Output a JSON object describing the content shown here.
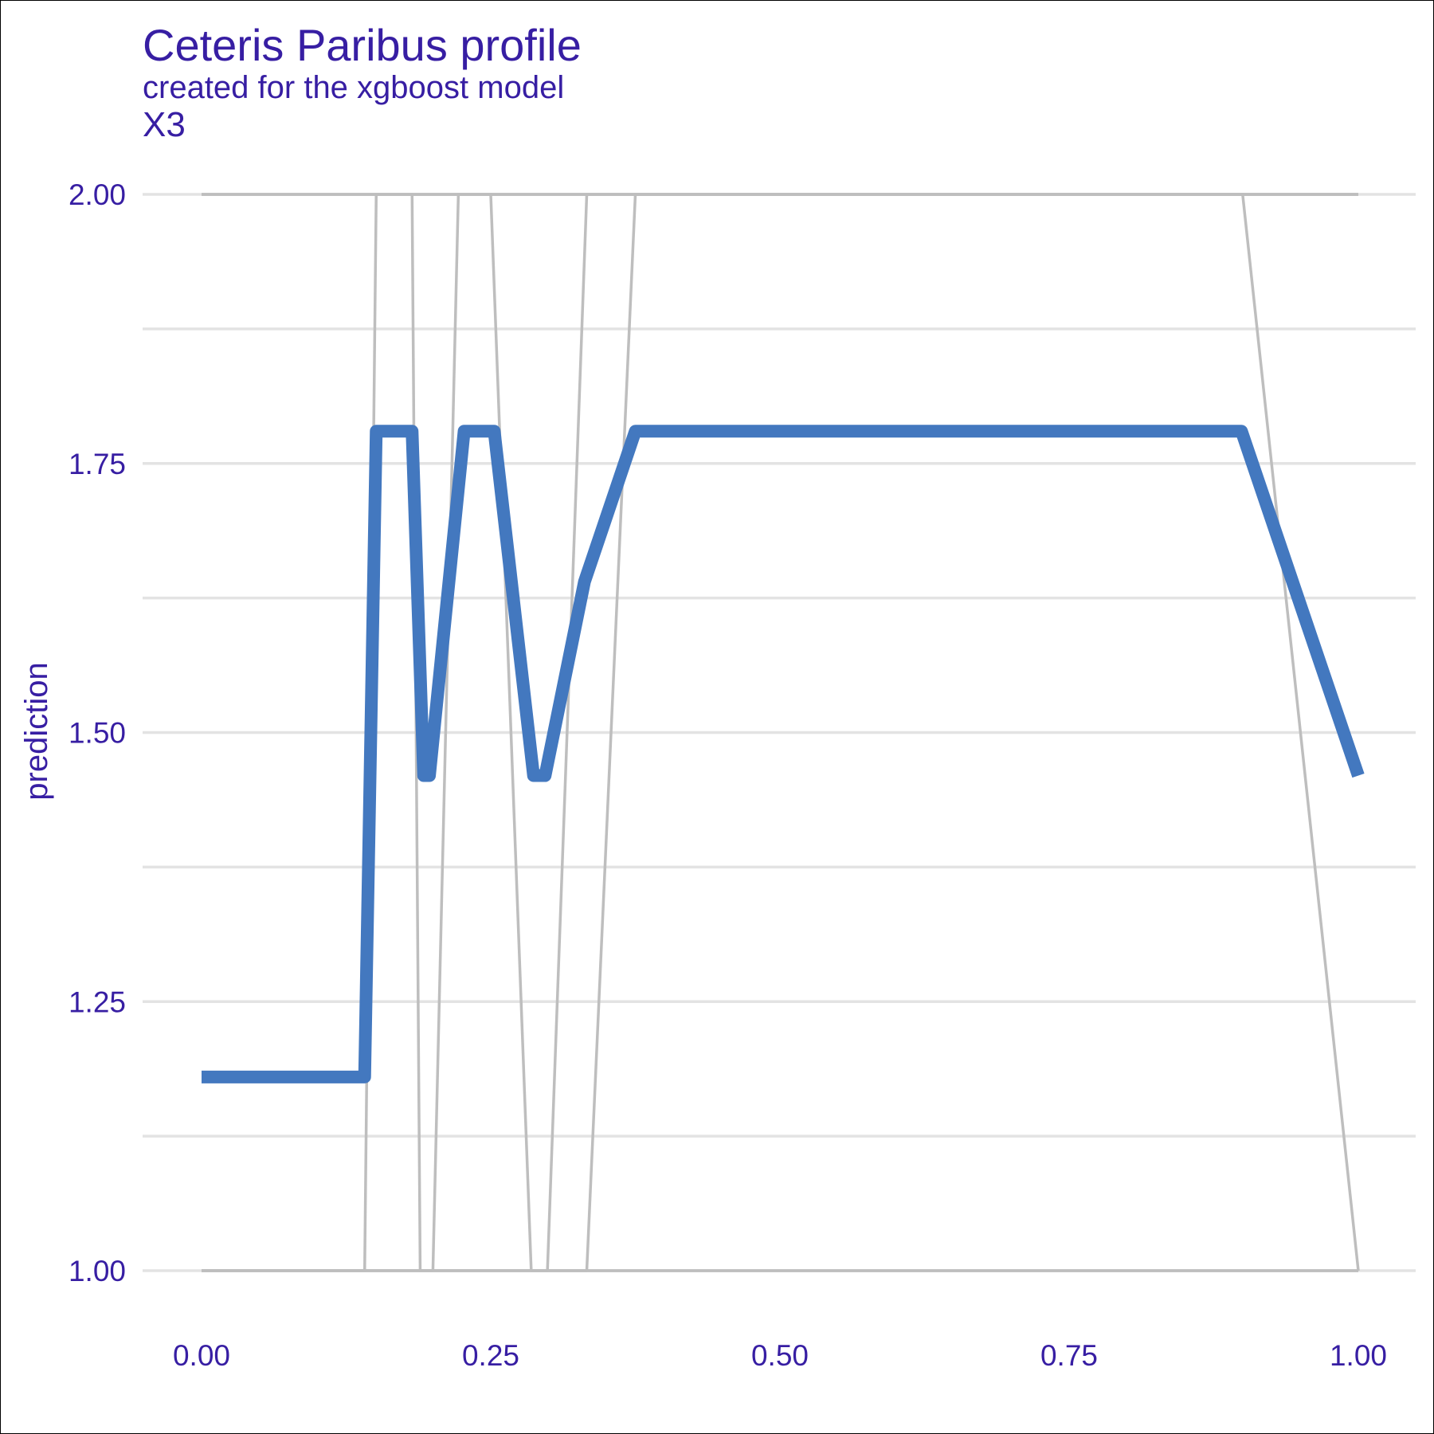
{
  "chart_data": {
    "type": "line",
    "title": "Ceteris Paribus profile",
    "subtitle": "created for the xgboost model",
    "facet_label": "X3",
    "xlabel": "",
    "ylabel": "prediction",
    "xlim": [
      0,
      1
    ],
    "ylim": [
      1,
      2
    ],
    "x_ticks": [
      0,
      0.25,
      0.5,
      0.75,
      1
    ],
    "x_tick_labels": [
      "0.00",
      "0.25",
      "0.50",
      "0.75",
      "1.00"
    ],
    "y_ticks": [
      1,
      1.25,
      1.5,
      1.75,
      2
    ],
    "y_tick_labels": [
      "1.00",
      "1.25",
      "1.50",
      "1.75",
      "2.00"
    ],
    "grid": true,
    "colors": {
      "text": "#371ea3",
      "profile": "#4378bf",
      "background_profiles": "#bebebe",
      "grid": "#e3e3e3"
    },
    "series": [
      {
        "values": [
          [
            0.0,
            1.18
          ],
          [
            0.141,
            1.18
          ],
          [
            0.151,
            1.78
          ],
          [
            0.182,
            1.78
          ],
          [
            0.192,
            1.46
          ],
          [
            0.197,
            1.46
          ],
          [
            0.227,
            1.78
          ],
          [
            0.253,
            1.78
          ],
          [
            0.287,
            1.46
          ],
          [
            0.297,
            1.46
          ],
          [
            0.331,
            1.64
          ],
          [
            0.375,
            1.78
          ],
          [
            0.899,
            1.78
          ],
          [
            1.0,
            1.46
          ]
        ]
      }
    ],
    "background_series": [
      {
        "values": [
          [
            0.0,
            1.0
          ],
          [
            0.141,
            1.0
          ],
          [
            0.151,
            2.0
          ],
          [
            1.0,
            2.0
          ]
        ]
      },
      {
        "values": [
          [
            0.0,
            2.0
          ],
          [
            0.182,
            2.0
          ],
          [
            0.189,
            1.0
          ],
          [
            1.0,
            1.0
          ]
        ]
      },
      {
        "values": [
          [
            0.0,
            1.0
          ],
          [
            0.2,
            1.0
          ],
          [
            0.222,
            2.0
          ],
          [
            1.0,
            2.0
          ]
        ]
      },
      {
        "values": [
          [
            0.0,
            2.0
          ],
          [
            0.25,
            2.0
          ],
          [
            0.285,
            1.0
          ],
          [
            1.0,
            1.0
          ]
        ]
      },
      {
        "values": [
          [
            0.0,
            1.0
          ],
          [
            0.299,
            1.0
          ],
          [
            0.333,
            2.0
          ],
          [
            1.0,
            2.0
          ]
        ]
      },
      {
        "values": [
          [
            0.0,
            1.0
          ],
          [
            0.333,
            1.0
          ],
          [
            0.375,
            2.0
          ],
          [
            1.0,
            2.0
          ]
        ]
      },
      {
        "values": [
          [
            0.0,
            2.0
          ],
          [
            0.9,
            2.0
          ],
          [
            1.0,
            1.0
          ]
        ]
      }
    ]
  }
}
